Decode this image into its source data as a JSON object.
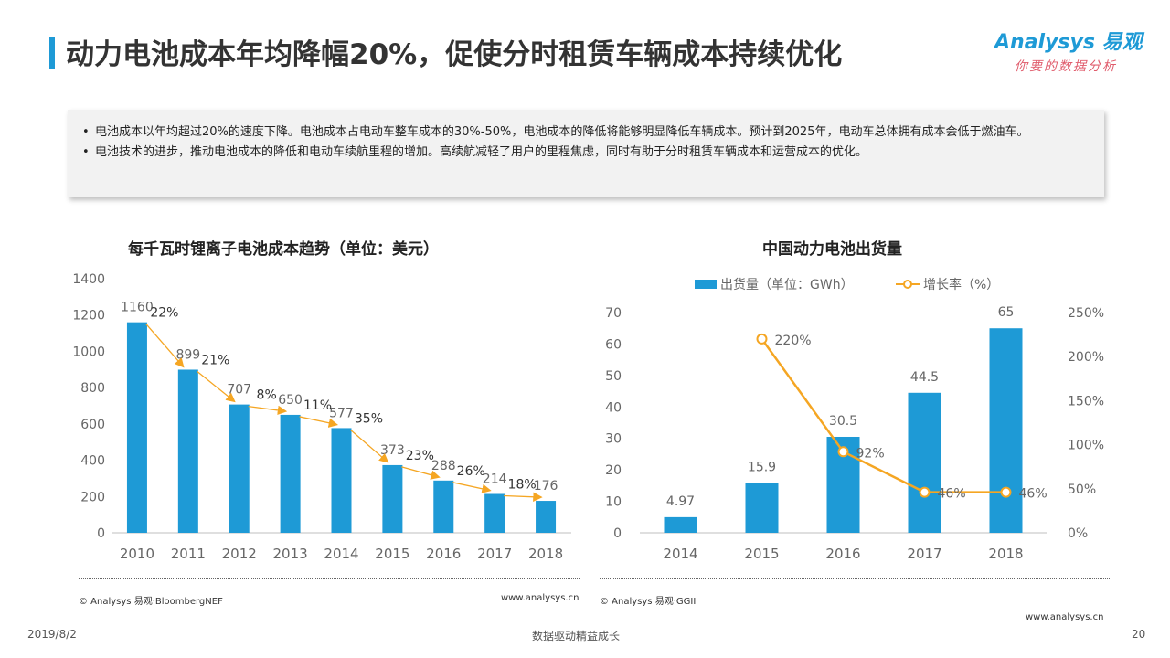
{
  "header": {
    "title": "动力电池成本年均降幅20%，促使分时租赁车辆成本持续优化",
    "logo_text": "Analysys 易观",
    "logo_tagline": "你要的数据分析"
  },
  "summary": {
    "bullets": [
      "电池成本以年均超过20%的速度下降。电池成本占电动车整车成本的30%-50%，电池成本的降低将能够明显降低车辆成本。预计到2025年，电动车总体拥有成本会低于燃油车。",
      "电池技术的进步，推动电池成本的降低和电动车续航里程的增加。高续航减轻了用户的里程焦虑，同时有助于分时租赁车辆成本和运营成本的优化。"
    ]
  },
  "chart_data": [
    {
      "type": "bar",
      "title": "每千瓦时锂离子电池成本趋势（单位：美元）",
      "categories": [
        "2010",
        "2011",
        "2012",
        "2013",
        "2014",
        "2015",
        "2016",
        "2017",
        "2018"
      ],
      "values": [
        1160,
        899,
        707,
        650,
        577,
        373,
        288,
        214,
        176
      ],
      "ylim": [
        0,
        1400
      ],
      "yticks": [
        0,
        200,
        400,
        600,
        800,
        1000,
        1200,
        1400
      ],
      "decline_annotations": [
        "22%",
        "21%",
        "8%",
        "11%",
        "35%",
        "23%",
        "26%",
        "18%"
      ],
      "bar_color": "#1e9ad6",
      "arrow_color": "#f5a623",
      "grid": false
    },
    {
      "type": "bar+line",
      "title": "中国动力电池出货量",
      "categories": [
        "2014",
        "2015",
        "2016",
        "2017",
        "2018"
      ],
      "series": [
        {
          "name": "出货量（单位：GWh）",
          "type": "bar",
          "axis": "left",
          "values": [
            4.97,
            15.9,
            30.5,
            44.5,
            65
          ],
          "labels": [
            "4.97",
            "15.9",
            "30.5",
            "44.5",
            "65"
          ],
          "color": "#1e9ad6"
        },
        {
          "name": "增长率（%）",
          "type": "line",
          "axis": "right",
          "values": [
            null,
            220,
            92,
            46,
            46
          ],
          "labels": [
            "",
            "220%",
            "92%",
            "46%",
            "46%"
          ],
          "color": "#f5a623"
        }
      ],
      "ylim_left": [
        0,
        70
      ],
      "yticks_left": [
        0,
        10,
        20,
        30,
        40,
        50,
        60,
        70
      ],
      "ylim_right": [
        0,
        250
      ],
      "yticks_right": [
        "0%",
        "50%",
        "100%",
        "150%",
        "200%",
        "250%"
      ],
      "legend_position": "top",
      "grid": false
    }
  ],
  "footer": {
    "left_source": "© Analysys 易观·BloombergNEF",
    "left_url": "www.analysys.cn",
    "right_source": "© Analysys 易观·GGII",
    "right_url": "www.analysys.cn",
    "date": "2019/8/2",
    "slogan": "数据驱动精益成长",
    "page": "20"
  }
}
